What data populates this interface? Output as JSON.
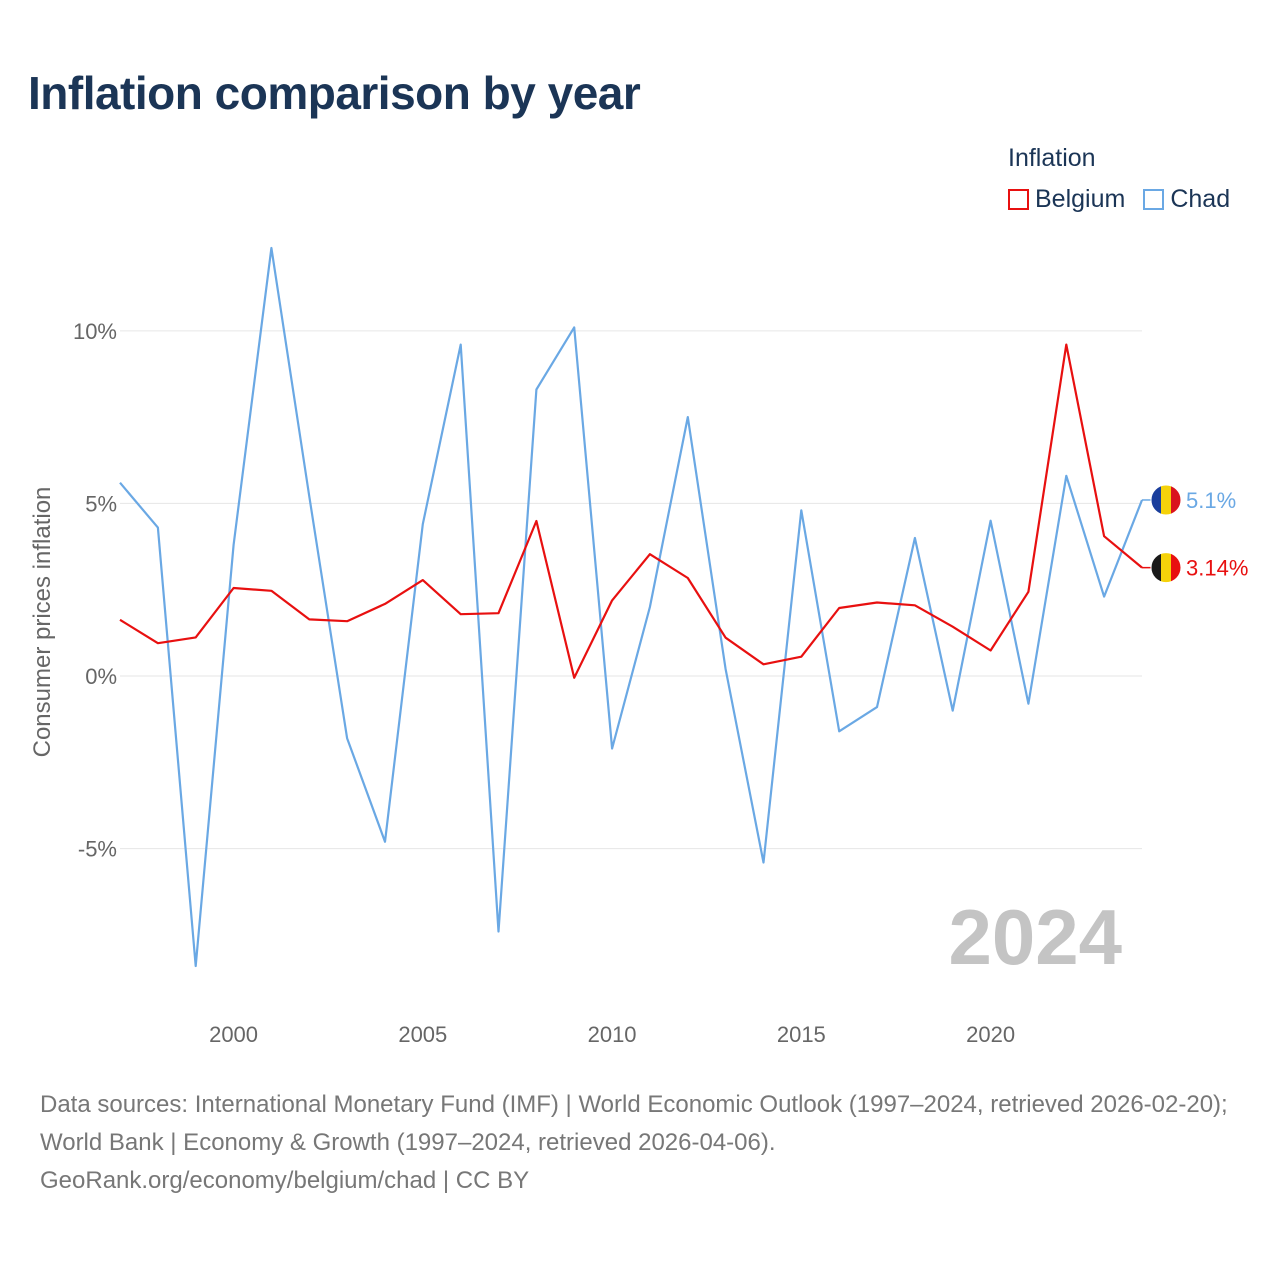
{
  "title": "Inflation comparison by year",
  "legend": {
    "title": "Inflation",
    "items": [
      {
        "label": "Belgium",
        "color": "#e81010"
      },
      {
        "label": "Chad",
        "color": "#6aa8e4"
      }
    ]
  },
  "year_mark": "2024",
  "source": {
    "line1": "Data sources: International Monetary Fund (IMF) | World Economic Outlook (1997–2024, retrieved 2026-02-20); World Bank | Economy & Growth (1997–2024, retrieved 2026-04-06).",
    "line2": "GeoRank.org/economy/belgium/chad | CC BY"
  },
  "chart_data": {
    "type": "line",
    "title": "Inflation comparison by year",
    "xlabel": "",
    "ylabel": "Consumer prices inflation",
    "x": [
      1997,
      1998,
      1999,
      2000,
      2001,
      2002,
      2003,
      2004,
      2005,
      2006,
      2007,
      2008,
      2009,
      2010,
      2011,
      2012,
      2013,
      2014,
      2015,
      2016,
      2017,
      2018,
      2019,
      2020,
      2021,
      2022,
      2023,
      2024
    ],
    "xlim": [
      1997,
      2024
    ],
    "ylim": [
      -9.5,
      13.5
    ],
    "yticks": [
      -5,
      0,
      5,
      10
    ],
    "ytick_labels": [
      "-5%",
      "0%",
      "5%",
      "10%"
    ],
    "xticks": [
      2000,
      2005,
      2010,
      2015,
      2020
    ],
    "xtick_labels": [
      "2000",
      "2005",
      "2010",
      "2015",
      "2020"
    ],
    "grid": true,
    "series": [
      {
        "name": "Belgium",
        "color": "#e81010",
        "values": [
          1.63,
          0.95,
          1.12,
          2.55,
          2.47,
          1.64,
          1.59,
          2.09,
          2.78,
          1.79,
          1.82,
          4.49,
          -0.05,
          2.19,
          3.53,
          2.84,
          1.11,
          0.34,
          0.56,
          1.97,
          2.13,
          2.05,
          1.43,
          0.74,
          2.44,
          9.6,
          4.05,
          3.14
        ],
        "end_label": "3.14%"
      },
      {
        "name": "Chad",
        "color": "#6aa8e4",
        "values": [
          5.6,
          4.3,
          -8.4,
          3.8,
          12.4,
          5.2,
          -1.8,
          -4.8,
          4.4,
          9.6,
          -7.4,
          8.3,
          10.1,
          -2.1,
          2.0,
          7.5,
          0.2,
          -5.4,
          4.8,
          -1.6,
          -0.9,
          4.0,
          -1.0,
          4.5,
          -0.8,
          5.8,
          2.3,
          5.1
        ],
        "end_label": "5.1%"
      }
    ]
  }
}
